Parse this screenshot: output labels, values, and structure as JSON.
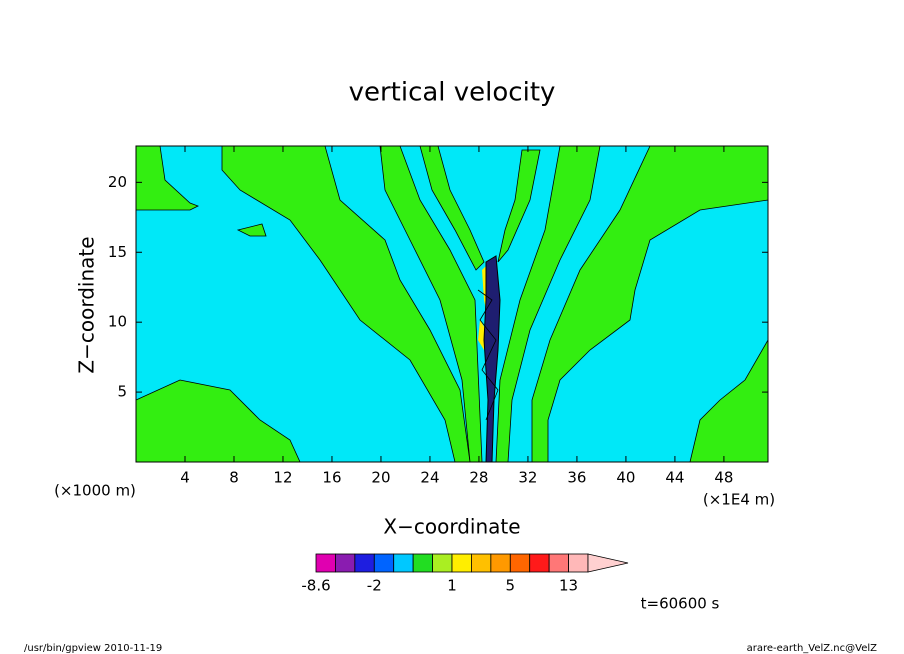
{
  "chart_data": {
    "type": "contour",
    "title": "vertical velocity",
    "x_label": "X−coordinate",
    "y_label": "Z−coordinate",
    "x_unit_left": "(×1000 m)",
    "x_unit_right": "(×1E4 m)",
    "time_label": "t=60600 s",
    "xlim": [
      0,
      51.6
    ],
    "xticks": [
      4,
      8,
      12,
      16,
      20,
      24,
      28,
      32,
      36,
      40,
      44,
      48
    ],
    "ylim": [
      0,
      22.6
    ],
    "yticks": [
      5,
      10,
      15,
      20
    ],
    "colorbar": {
      "levels": [
        -8.6,
        -6,
        -4,
        -2,
        -1.5,
        -0.5,
        0.5,
        1,
        2,
        3,
        5,
        7,
        10,
        13,
        20
      ],
      "colors": [
        "#e000b0",
        "#8a1cb0",
        "#1e1ee0",
        "#0064ff",
        "#00c8ff",
        "#22dd22",
        "#aaee22",
        "#ffee00",
        "#ffc000",
        "#ff9900",
        "#ff6600",
        "#ff1a1a",
        "#ff7777",
        "#ffb8b8"
      ],
      "extend_color": "#ffd0d0",
      "ticks": [
        -8.6,
        -2,
        1,
        5,
        13
      ]
    },
    "footer_left": "/usr/bin/gpview   2010-11-19",
    "footer_right": "arare-earth_VelZ.nc@VelZ"
  }
}
